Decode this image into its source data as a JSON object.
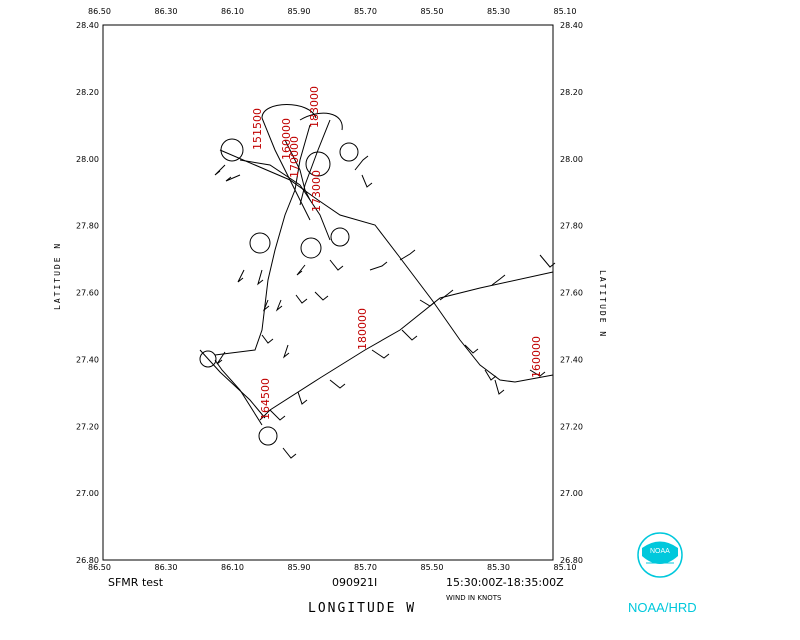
{
  "x_ticks": [
    "86.50",
    "86.30",
    "86.10",
    "85.90",
    "85.70",
    "85.50",
    "85.30",
    "85.10"
  ],
  "y_ticks": [
    "28.40",
    "28.20",
    "28.00",
    "27.80",
    "27.60",
    "27.40",
    "27.20",
    "27.00",
    "26.80"
  ],
  "x_axis_label": "LONGITUDE   W",
  "y_axis_label": "LATITUDE   N",
  "bottom_left": "SFMR test",
  "flight_id": "090921I",
  "time_range": "15:30:00Z-18:35:00Z",
  "wind_units": "WIND IN KNOTS",
  "logo_label": "NOAA/HRD",
  "logo_text": "NOAA",
  "time_labels": [
    "151500",
    "160000",
    "170000",
    "173000",
    "180000",
    "183000",
    "160000",
    "164500"
  ],
  "chart_data": {
    "type": "scatter",
    "xlabel": "LONGITUDE   W",
    "ylabel": "LATITUDE   N",
    "xlim": [
      -86.5,
      -85.1
    ],
    "ylim": [
      26.8,
      28.4
    ],
    "grid": false,
    "colors": {
      "track": "#000000",
      "time_labels": "#c00000",
      "logo": "#00c8dc"
    },
    "track": [
      {
        "lon": -85.08,
        "lat": 27.65
      },
      {
        "lon": -85.2,
        "lat": 27.63
      },
      {
        "lon": -85.38,
        "lat": 27.58
      },
      {
        "lon": -85.48,
        "lat": 27.55
      },
      {
        "lon": -85.62,
        "lat": 27.47
      },
      {
        "lon": -85.75,
        "lat": 27.35
      },
      {
        "lon": -85.95,
        "lat": 27.24
      },
      {
        "lon": -86.0,
        "lat": 27.22
      },
      {
        "lon": -86.1,
        "lat": 27.3
      },
      {
        "lon": -86.15,
        "lat": 27.4
      },
      {
        "lon": -86.0,
        "lat": 27.42
      },
      {
        "lon": -85.88,
        "lat": 27.6
      },
      {
        "lon": -85.8,
        "lat": 27.75
      },
      {
        "lon": -85.85,
        "lat": 27.85
      },
      {
        "lon": -85.92,
        "lat": 27.95
      },
      {
        "lon": -86.0,
        "lat": 28.05
      },
      {
        "lon": -85.92,
        "lat": 28.15
      },
      {
        "lon": -85.82,
        "lat": 28.1
      },
      {
        "lon": -85.85,
        "lat": 27.95
      },
      {
        "lon": -85.75,
        "lat": 27.85
      },
      {
        "lon": -85.65,
        "lat": 27.82
      },
      {
        "lon": -85.55,
        "lat": 27.72
      },
      {
        "lon": -85.42,
        "lat": 27.58
      },
      {
        "lon": -85.3,
        "lat": 27.42
      },
      {
        "lon": -85.2,
        "lat": 27.33
      },
      {
        "lon": -85.08,
        "lat": 27.35
      }
    ]
  }
}
